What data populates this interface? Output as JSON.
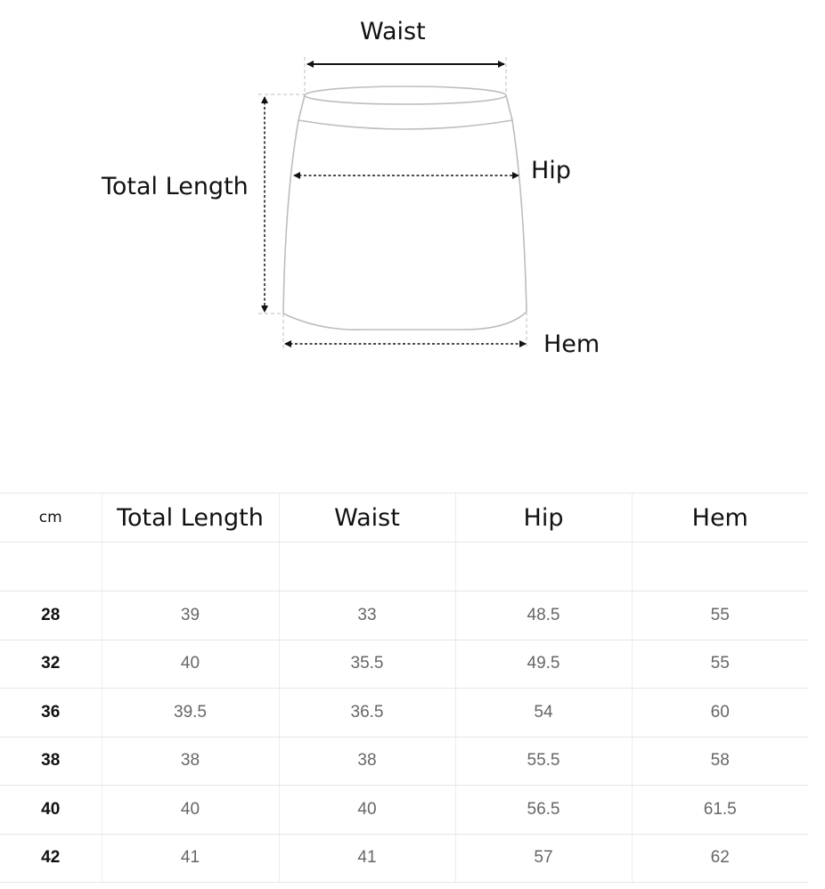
{
  "diagram": {
    "labels": {
      "waist": "Waist",
      "hip": "Hip",
      "hem": "Hem",
      "total_length": "Total Length"
    },
    "outline_color": "#bdbdbd",
    "arrow_color": "#111111"
  },
  "table": {
    "unit": "cm",
    "headers": [
      "Total Length",
      "Waist",
      "Hip",
      "Hem"
    ],
    "rows": [
      {
        "size": "28",
        "values": [
          "39",
          "33",
          "48.5",
          "55"
        ]
      },
      {
        "size": "32",
        "values": [
          "40",
          "35.5",
          "49.5",
          "55"
        ]
      },
      {
        "size": "36",
        "values": [
          "39.5",
          "36.5",
          "54",
          "60"
        ]
      },
      {
        "size": "38",
        "values": [
          "38",
          "38",
          "55.5",
          "58"
        ]
      },
      {
        "size": "40",
        "values": [
          "40",
          "40",
          "56.5",
          "61.5"
        ]
      },
      {
        "size": "42",
        "values": [
          "41",
          "41",
          "57",
          "62"
        ]
      }
    ]
  }
}
